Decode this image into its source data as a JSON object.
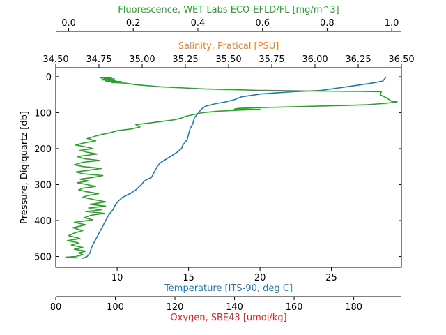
{
  "chart_data": {
    "type": "line",
    "y_axis": {
      "label": "Pressure, Digiquartz [db]",
      "range": [
        530,
        -25
      ],
      "ticks": [
        0,
        100,
        200,
        300,
        400,
        500
      ]
    },
    "x_axes": [
      {
        "id": "fluorescence",
        "label": "Fluorescence, WET Labs ECO-EFLD/FL [mg/m^3]",
        "color": "#2ca02c",
        "position": "top-outer",
        "range": [
          -0.04,
          1.03
        ],
        "ticks": [
          0.0,
          0.2,
          0.4,
          0.6,
          0.8,
          1.0
        ],
        "tick_labels": [
          "0.0",
          "0.2",
          "0.4",
          "0.6",
          "0.8",
          "1.0"
        ]
      },
      {
        "id": "salinity",
        "label": "Salinity, Pratical [PSU]",
        "color": "#ff7f0e",
        "position": "top",
        "range": [
          34.5,
          36.5
        ],
        "ticks": [
          34.5,
          34.75,
          35.0,
          35.25,
          35.5,
          35.75,
          36.0,
          36.25,
          36.5
        ],
        "tick_labels": [
          "34.50",
          "34.75",
          "35.00",
          "35.25",
          "35.50",
          "35.75",
          "36.00",
          "36.25",
          "36.50"
        ]
      },
      {
        "id": "temperature",
        "label": "Temperature [ITS-90, deg C]",
        "color": "#1f77b4",
        "position": "bottom",
        "range": [
          5.7,
          29.9
        ],
        "ticks": [
          10,
          15,
          20,
          25
        ],
        "tick_labels": [
          "10",
          "15",
          "20",
          "25"
        ]
      },
      {
        "id": "oxygen",
        "label": "Oxygen, SBE43 [umol/kg]",
        "color": "#d62728",
        "position": "bottom-outer",
        "range": [
          80,
          196
        ],
        "ticks": [
          80,
          100,
          120,
          140,
          160,
          180
        ],
        "tick_labels": [
          "80",
          "100",
          "120",
          "140",
          "160",
          "180"
        ]
      }
    ],
    "series": [
      {
        "axis": "temperature",
        "color": "#1f77b4",
        "points": [
          [
            28.8,
            2
          ],
          [
            28.6,
            12
          ],
          [
            27.8,
            18
          ],
          [
            26.6,
            25
          ],
          [
            24.3,
            38
          ],
          [
            22.3,
            42
          ],
          [
            21.1,
            45
          ],
          [
            20.1,
            48
          ],
          [
            19.4,
            52
          ],
          [
            18.7,
            56
          ],
          [
            18.2,
            64
          ],
          [
            17.6,
            70
          ],
          [
            16.9,
            75
          ],
          [
            16.2,
            82
          ],
          [
            15.9,
            90
          ],
          [
            15.7,
            100
          ],
          [
            15.4,
            115
          ],
          [
            15.3,
            130
          ],
          [
            15.1,
            145
          ],
          [
            15.0,
            160
          ],
          [
            14.9,
            175
          ],
          [
            14.6,
            190
          ],
          [
            14.5,
            200
          ],
          [
            14.2,
            210
          ],
          [
            13.8,
            220
          ],
          [
            13.4,
            230
          ],
          [
            13.0,
            240
          ],
          [
            12.8,
            250
          ],
          [
            12.6,
            265
          ],
          [
            12.4,
            280
          ],
          [
            11.9,
            290
          ],
          [
            11.7,
            300
          ],
          [
            11.3,
            315
          ],
          [
            10.9,
            325
          ],
          [
            10.4,
            335
          ],
          [
            10.1,
            345
          ],
          [
            9.9,
            355
          ],
          [
            9.7,
            370
          ],
          [
            9.4,
            385
          ],
          [
            9.2,
            400
          ],
          [
            9.0,
            415
          ],
          [
            8.8,
            430
          ],
          [
            8.6,
            445
          ],
          [
            8.4,
            460
          ],
          [
            8.2,
            475
          ],
          [
            8.1,
            490
          ],
          [
            7.9,
            500
          ],
          [
            7.6,
            505
          ]
        ]
      },
      {
        "axis": "temperature",
        "color": "#2ca02c",
        "points": [
          [
            8.8,
            2
          ],
          [
            8.9,
            4
          ],
          [
            9.0,
            3
          ],
          [
            9.6,
            3
          ],
          [
            9.1,
            5
          ],
          [
            9.8,
            6
          ],
          [
            9.0,
            7
          ],
          [
            9.7,
            8
          ],
          [
            8.9,
            9
          ],
          [
            9.9,
            10
          ],
          [
            9.2,
            12
          ],
          [
            10.3,
            14
          ],
          [
            9.6,
            16
          ],
          [
            10.6,
            18
          ],
          [
            11.2,
            22
          ],
          [
            13.0,
            28
          ],
          [
            16.1,
            34
          ],
          [
            20.0,
            38
          ],
          [
            24.0,
            40
          ],
          [
            27.0,
            41
          ],
          [
            28.5,
            42
          ],
          [
            28.4,
            50
          ],
          [
            28.9,
            60
          ],
          [
            29.2,
            68
          ],
          [
            29.6,
            70
          ],
          [
            28.8,
            74
          ],
          [
            27.5,
            78
          ],
          [
            26.0,
            80
          ],
          [
            24.0,
            82
          ],
          [
            22.0,
            84
          ],
          [
            20.0,
            86
          ],
          [
            18.5,
            88
          ],
          [
            18.2,
            90
          ],
          [
            20.0,
            91
          ],
          [
            18.5,
            93
          ],
          [
            17.0,
            96
          ],
          [
            16.0,
            100
          ],
          [
            15.4,
            105
          ],
          [
            14.8,
            110
          ],
          [
            14.5,
            115
          ],
          [
            14.0,
            120
          ],
          [
            13.0,
            125
          ],
          [
            12.0,
            130
          ],
          [
            11.3,
            133
          ],
          [
            11.6,
            140
          ],
          [
            10.9,
            146
          ],
          [
            10.0,
            150
          ],
          [
            9.6,
            155
          ],
          [
            9.0,
            160
          ],
          [
            8.5,
            165
          ],
          [
            8.1,
            170
          ],
          [
            7.9,
            172
          ],
          [
            8.5,
            178
          ],
          [
            7.6,
            185
          ],
          [
            7.1,
            190
          ],
          [
            7.8,
            195
          ],
          [
            8.3,
            200
          ],
          [
            7.4,
            205
          ],
          [
            7.9,
            210
          ],
          [
            8.6,
            215
          ],
          [
            7.2,
            222
          ],
          [
            7.7,
            228
          ],
          [
            8.8,
            233
          ],
          [
            7.6,
            238
          ],
          [
            7.0,
            245
          ],
          [
            7.6,
            250
          ],
          [
            8.9,
            255
          ],
          [
            8.0,
            260
          ],
          [
            7.1,
            265
          ],
          [
            7.6,
            270
          ],
          [
            9.0,
            275
          ],
          [
            8.3,
            280
          ],
          [
            7.4,
            285
          ],
          [
            8.0,
            290
          ],
          [
            7.2,
            295
          ],
          [
            7.9,
            300
          ],
          [
            8.5,
            305
          ],
          [
            7.6,
            310
          ],
          [
            7.3,
            315
          ],
          [
            7.9,
            320
          ],
          [
            8.7,
            325
          ],
          [
            8.0,
            330
          ],
          [
            7.6,
            335
          ],
          [
            8.4,
            342
          ],
          [
            9.2,
            348
          ],
          [
            8.1,
            355
          ],
          [
            9.2,
            360
          ],
          [
            8.0,
            365
          ],
          [
            8.9,
            370
          ],
          [
            7.8,
            375
          ],
          [
            9.1,
            380
          ],
          [
            8.2,
            385
          ],
          [
            7.7,
            392
          ],
          [
            8.3,
            398
          ],
          [
            7.0,
            405
          ],
          [
            7.8,
            412
          ],
          [
            6.9,
            420
          ],
          [
            7.6,
            428
          ],
          [
            7.0,
            435
          ],
          [
            6.6,
            442
          ],
          [
            7.4,
            450
          ],
          [
            6.5,
            456
          ],
          [
            7.3,
            462
          ],
          [
            6.8,
            468
          ],
          [
            7.6,
            475
          ],
          [
            7.0,
            480
          ],
          [
            7.8,
            485
          ],
          [
            7.3,
            490
          ],
          [
            7.6,
            495
          ],
          [
            7.1,
            500
          ],
          [
            6.4,
            502
          ],
          [
            7.2,
            504
          ]
        ]
      }
    ]
  }
}
